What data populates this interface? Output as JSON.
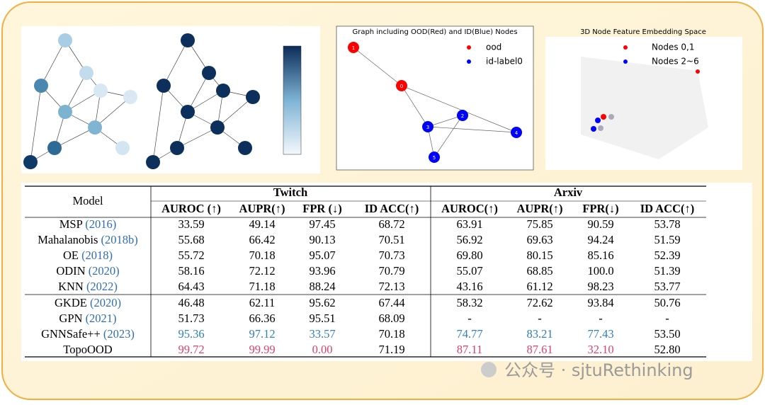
{
  "plot_2d": {
    "title": "Graph including OOD(Red) and ID(Blue) Nodes",
    "legend": [
      "ood",
      "id-label0"
    ],
    "node_labels": [
      "1",
      "0",
      "2",
      "3",
      "4",
      "5"
    ]
  },
  "plot_3d": {
    "title": "3D Node Feature Embedding Space",
    "legend": [
      "Nodes 0,1",
      "Nodes 2~6"
    ]
  },
  "table": {
    "header": {
      "model": "Model",
      "groups": [
        "Twitch",
        "Arxiv"
      ],
      "metrics": [
        "AUROC (↑)",
        "AUPR(↑)",
        "FPR (↓)",
        "ID ACC(↑)",
        "AUROC(↑)",
        "AUPR(↑)",
        "FPR(↓)",
        "ID ACC(↑)"
      ]
    },
    "rows": [
      {
        "model": "MSP",
        "year": "(2016)",
        "cells": [
          "33.59",
          "49.14",
          "97.45",
          "68.72",
          "63.91",
          "75.85",
          "90.59",
          "53.78"
        ]
      },
      {
        "model": "Mahalanobis",
        "year": "(2018b)",
        "cells": [
          "55.68",
          "66.42",
          "90.13",
          "70.51",
          "56.92",
          "69.63",
          "94.24",
          "51.59"
        ]
      },
      {
        "model": "OE",
        "year": "(2018)",
        "cells": [
          "55.72",
          "70.18",
          "95.07",
          "70.73",
          "69.80",
          "80.15",
          "85.16",
          "52.39"
        ]
      },
      {
        "model": "ODIN",
        "year": "(2020)",
        "cells": [
          "58.16",
          "72.12",
          "93.96",
          "70.79",
          "55.07",
          "68.85",
          "100.0",
          "51.39"
        ]
      },
      {
        "model": "KNN",
        "year": "(2022)",
        "cells": [
          "64.43",
          "71.18",
          "88.24",
          "72.13",
          "43.16",
          "61.12",
          "98.23",
          "53.77"
        ]
      },
      {
        "model": "GKDE",
        "year": "(2020)",
        "cells": [
          "46.48",
          "62.11",
          "95.62",
          "67.44",
          "58.32",
          "72.62",
          "93.84",
          "50.76"
        ]
      },
      {
        "model": "GPN",
        "year": "(2021)",
        "cells": [
          "51.73",
          "66.36",
          "95.51",
          "68.09",
          "-",
          "-",
          "-",
          "-"
        ]
      },
      {
        "model": "GNNSafe++",
        "year": "(2023)",
        "cells": [
          "95.36",
          "97.12",
          "33.57",
          "70.18",
          "74.77",
          "83.21",
          "77.43",
          "53.50"
        ],
        "cell_colors": [
          "#2f7fb8",
          "#2f7fb8",
          "#2f7fb8",
          null,
          "#2f7fb8",
          "#2f7fb8",
          "#2f7fb8",
          null
        ]
      },
      {
        "model": "TopoOOD",
        "cells": [
          "99.72",
          "99.99",
          "0.00",
          "71.19",
          "87.11",
          "87.61",
          "32.10",
          "52.80"
        ],
        "cell_colors": [
          "#e0406a",
          "#e0406a",
          "#e0406a",
          null,
          "#e0406a",
          "#e0406a",
          "#e0406a",
          null
        ]
      }
    ]
  },
  "watermark": "公众号 · sjtuRethinking"
}
